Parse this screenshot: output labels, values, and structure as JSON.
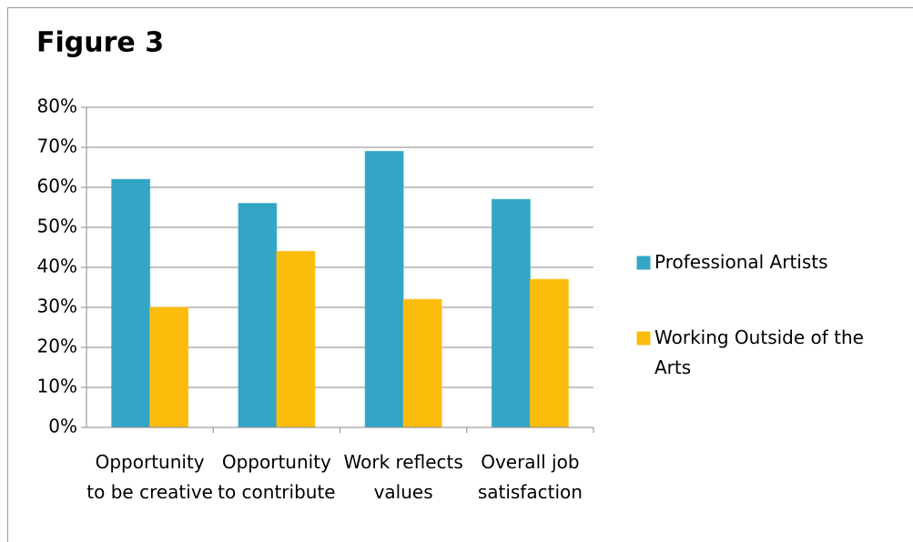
{
  "chart_data": {
    "type": "bar",
    "title": "Figure 3",
    "categories": [
      "Opportunity to be creative",
      "Opportunity to contribute",
      "Work reflects values",
      "Overall job satisfaction"
    ],
    "series": [
      {
        "name": "Professional Artists",
        "color": "#33a6c6",
        "values": [
          62,
          56,
          69,
          57
        ]
      },
      {
        "name": "Working Outside of the Arts",
        "color": "#fcbc0c",
        "values": [
          30,
          44,
          32,
          37
        ]
      }
    ],
    "ylim": [
      0,
      80
    ],
    "yticks": [
      {
        "value": 0,
        "label": "0%"
      },
      {
        "value": 10,
        "label": "10%"
      },
      {
        "value": 20,
        "label": "20%"
      },
      {
        "value": 30,
        "label": "30%"
      },
      {
        "value": 40,
        "label": "40%"
      },
      {
        "value": 50,
        "label": "50%"
      },
      {
        "value": 60,
        "label": "60%"
      },
      {
        "value": 70,
        "label": "70%"
      },
      {
        "value": 80,
        "label": "80%"
      }
    ],
    "grid": true,
    "legend": "right"
  }
}
